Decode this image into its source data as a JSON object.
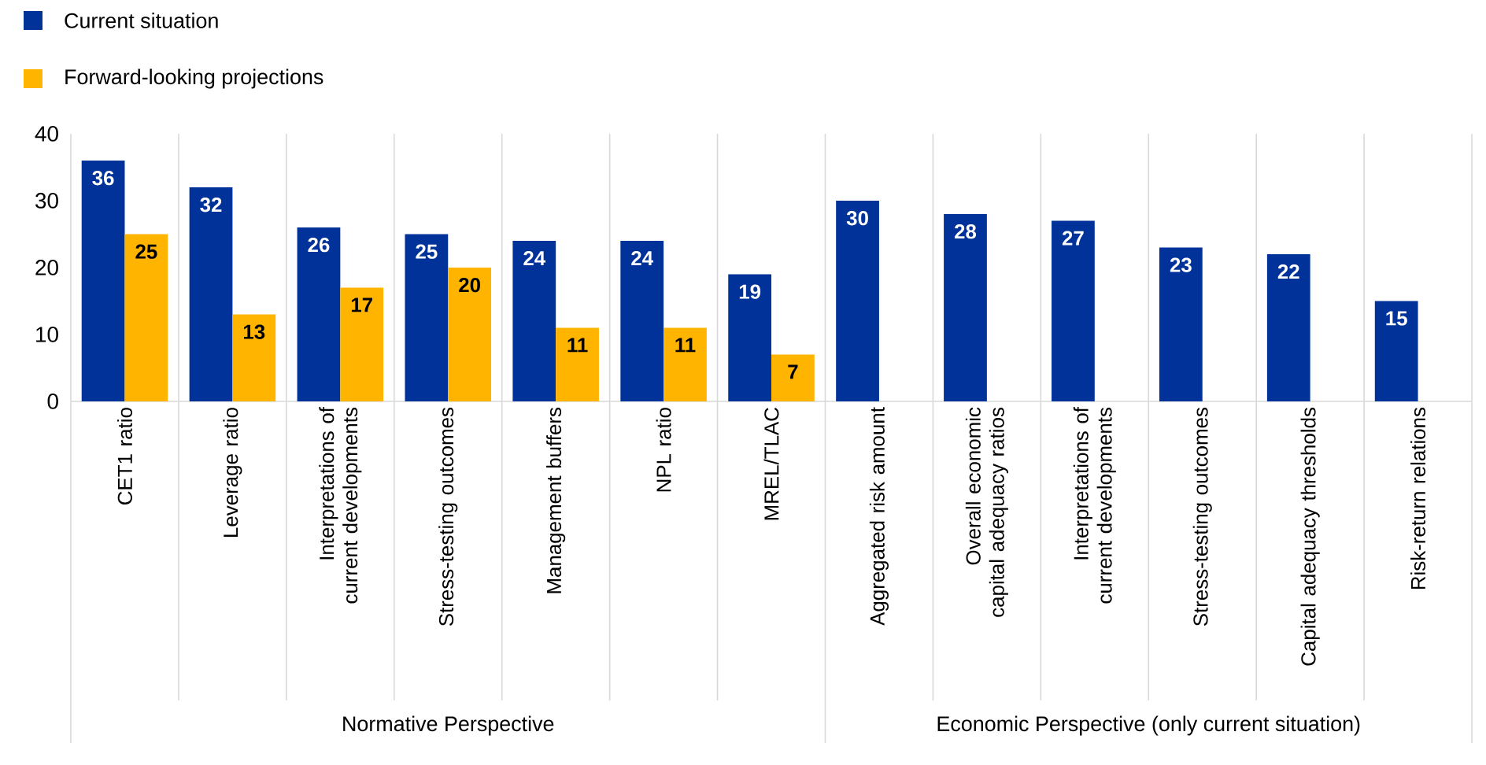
{
  "chart_data": {
    "type": "bar",
    "categories": [
      "CET1 ratio",
      "Leverage ratio",
      "Interpretations of current developments",
      "Stress-testing outcomes",
      "Management buffers",
      "NPL ratio",
      "MREL/TLAC",
      "Aggregated risk amount",
      "Overall economic capital adequacy ratios",
      "Interpretations of current developments",
      "Stress-testing outcomes",
      "Capital adequacy thresholds",
      "Risk-return relations"
    ],
    "series": [
      {
        "name": "Current situation",
        "color": "#003299",
        "values": [
          36,
          32,
          26,
          25,
          24,
          24,
          19,
          30,
          28,
          27,
          23,
          22,
          15
        ]
      },
      {
        "name": "Forward-looking projections",
        "color": "#ffb400",
        "values": [
          25,
          13,
          17,
          20,
          11,
          11,
          7,
          null,
          null,
          null,
          null,
          null,
          null
        ]
      }
    ],
    "ylim": [
      0,
      40
    ],
    "yticks": [
      0,
      10,
      20,
      30,
      40
    ],
    "grid": "x",
    "legend": "top left",
    "data_labels": true,
    "annotations": [
      "Normative Perspective",
      "Economic Perspective (only current situation)"
    ]
  }
}
